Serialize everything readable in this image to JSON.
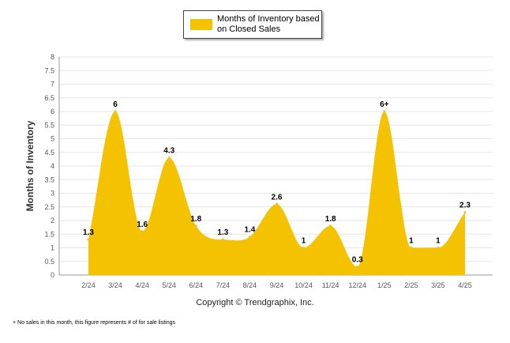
{
  "legend": {
    "label": "Months of Inventory based on Closed Sales"
  },
  "copyright": "Copyright © Trendgraphix, Inc.",
  "footnote": "+ No sales in this month, this figure represents # of for sale listings",
  "colors": {
    "fill": "#F5C200",
    "grid": "#E6E6E6",
    "axis": "#999999"
  },
  "chart_data": {
    "type": "area",
    "ylabel": "Months of Inventory",
    "xlabel": "",
    "ylim": [
      0,
      8
    ],
    "yticks": [
      "0",
      "0.5",
      "1",
      "1.5",
      "2",
      "2.5",
      "3",
      "3.5",
      "4",
      "4.5",
      "5",
      "5.5",
      "6",
      "6.5",
      "7",
      "7.5",
      "8"
    ],
    "categories": [
      "2/24",
      "3/24",
      "4/24",
      "5/24",
      "6/24",
      "7/24",
      "8/24",
      "9/24",
      "10/24",
      "11/24",
      "12/24",
      "1/25",
      "2/25",
      "3/25",
      "4/25"
    ],
    "values": [
      1.3,
      6,
      1.6,
      4.3,
      1.8,
      1.3,
      1.4,
      2.6,
      1,
      1.8,
      0.3,
      6,
      1,
      1,
      2.3
    ],
    "data_labels": [
      "1.3",
      "6",
      "1.6",
      "4.3",
      "1.8",
      "1.3",
      "1.4",
      "2.6",
      "1",
      "1.8",
      "0.3",
      "6+",
      "1",
      "1",
      "2.3"
    ],
    "grid": true,
    "legend_position": "top-center"
  }
}
